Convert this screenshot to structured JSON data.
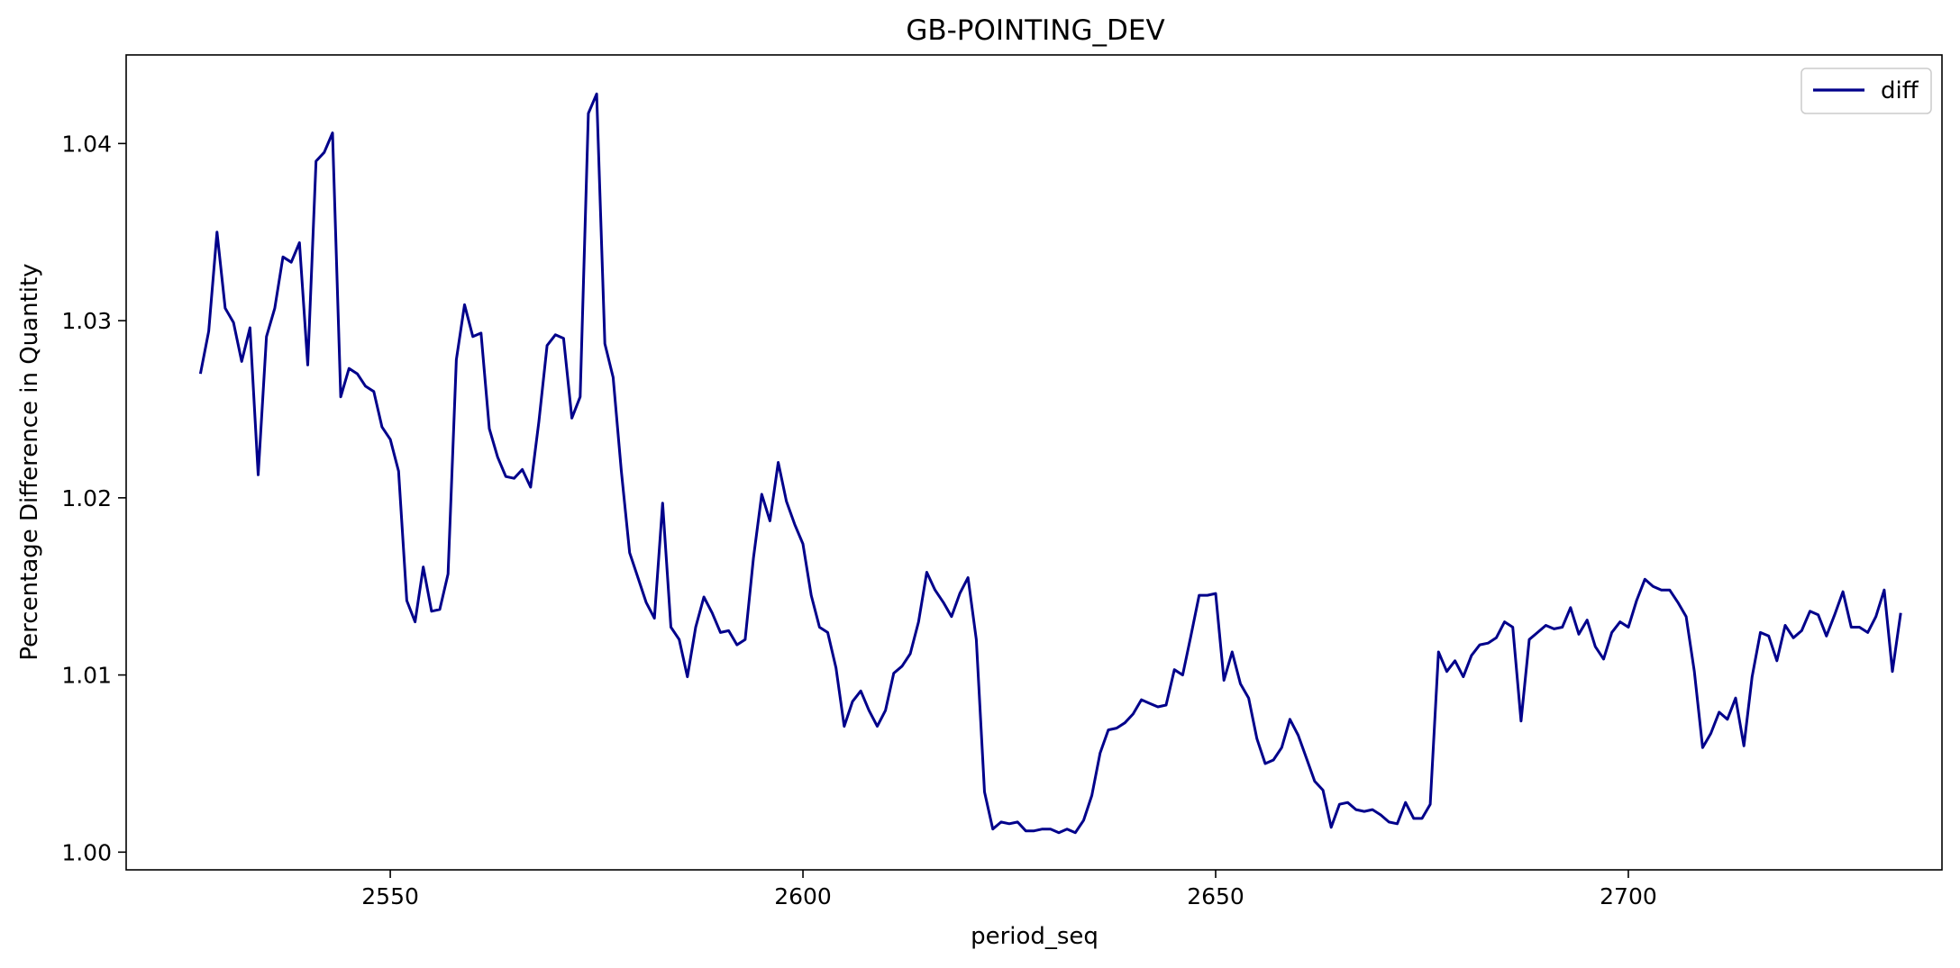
{
  "chart_data": {
    "type": "line",
    "title": "GB-POINTING_DEV",
    "xlabel": "period_seq",
    "ylabel": "Percentage Difference in Quantity",
    "xlim": [
      2518,
      2738
    ],
    "ylim": [
      0.999,
      1.045
    ],
    "xticks": [
      2550,
      2600,
      2650,
      2700
    ],
    "yticks": [
      1.0,
      1.01,
      1.02,
      1.03,
      1.04
    ],
    "xtick_labels": [
      "2550",
      "2600",
      "2650",
      "2700"
    ],
    "ytick_labels": [
      "1.00",
      "1.01",
      "1.02",
      "1.03",
      "1.04"
    ],
    "grid": false,
    "legend": {
      "position": "top-right",
      "entries": [
        "diff"
      ]
    },
    "series": [
      {
        "name": "diff",
        "color": "#00008b",
        "x": [
          2527,
          2528,
          2529,
          2530,
          2531,
          2532,
          2533,
          2534,
          2535,
          2536,
          2537,
          2538,
          2539,
          2540,
          2541,
          2542,
          2543,
          2544,
          2545,
          2546,
          2547,
          2548,
          2549,
          2550,
          2551,
          2552,
          2553,
          2554,
          2555,
          2556,
          2557,
          2558,
          2559,
          2560,
          2561,
          2562,
          2563,
          2564,
          2565,
          2566,
          2567,
          2568,
          2569,
          2570,
          2571,
          2572,
          2573,
          2574,
          2575,
          2576,
          2577,
          2578,
          2579,
          2580,
          2581,
          2582,
          2583,
          2584,
          2585,
          2586,
          2587,
          2588,
          2589,
          2590,
          2591,
          2592,
          2593,
          2594,
          2595,
          2596,
          2597,
          2598,
          2599,
          2600,
          2601,
          2602,
          2603,
          2604,
          2605,
          2606,
          2607,
          2608,
          2609,
          2610,
          2611,
          2612,
          2613,
          2614,
          2615,
          2616,
          2617,
          2618,
          2619,
          2620,
          2621,
          2622,
          2623,
          2624,
          2625,
          2626,
          2627,
          2628,
          2629,
          2630,
          2631,
          2632,
          2633,
          2634,
          2635,
          2636,
          2637,
          2638,
          2639,
          2640,
          2641,
          2642,
          2643,
          2644,
          2645,
          2646,
          2647,
          2648,
          2649,
          2650,
          2651,
          2652,
          2653,
          2654,
          2655,
          2656,
          2657,
          2658,
          2659,
          2660,
          2661,
          2662,
          2663,
          2664,
          2665,
          2666,
          2667,
          2668,
          2669,
          2670,
          2671,
          2672,
          2673,
          2674,
          2675,
          2676,
          2677,
          2678,
          2679,
          2680,
          2681,
          2682,
          2683,
          2684,
          2685,
          2686,
          2687,
          2688,
          2689,
          2690,
          2691,
          2692,
          2693,
          2694,
          2695,
          2696,
          2697,
          2698,
          2699,
          2700,
          2701,
          2702,
          2703,
          2704,
          2705,
          2706,
          2707,
          2708,
          2709,
          2710,
          2711,
          2712,
          2713,
          2714,
          2715,
          2716,
          2717,
          2718,
          2719,
          2720,
          2721,
          2722,
          2723,
          2724,
          2725,
          2726,
          2727,
          2728,
          2729,
          2730,
          2731,
          2732,
          2733
        ],
        "values": [
          1.027,
          1.0294,
          1.035,
          1.0307,
          1.0299,
          1.0277,
          1.0296,
          1.0213,
          1.0291,
          1.0307,
          1.0336,
          1.0333,
          1.0344,
          1.0275,
          1.039,
          1.0395,
          1.0406,
          1.0257,
          1.0273,
          1.027,
          1.0263,
          1.026,
          1.024,
          1.0233,
          1.0215,
          1.0142,
          1.013,
          1.0161,
          1.0136,
          1.0137,
          1.0157,
          1.0278,
          1.0309,
          1.0291,
          1.0293,
          1.0239,
          1.0223,
          1.0212,
          1.0211,
          1.0216,
          1.0206,
          1.0243,
          1.0286,
          1.0292,
          1.029,
          1.0245,
          1.0257,
          1.0417,
          1.0428,
          1.0287,
          1.0268,
          1.0215,
          1.0169,
          1.0155,
          1.0141,
          1.0132,
          1.0197,
          1.0127,
          1.012,
          1.0099,
          1.0127,
          1.0144,
          1.0135,
          1.0124,
          1.0125,
          1.0117,
          1.012,
          1.0166,
          1.0202,
          1.0187,
          1.022,
          1.0198,
          1.0185,
          1.0174,
          1.0145,
          1.0127,
          1.0124,
          1.0104,
          1.0071,
          1.0085,
          1.0091,
          1.008,
          1.0071,
          1.008,
          1.0101,
          1.0105,
          1.0112,
          1.013,
          1.0158,
          1.0148,
          1.0141,
          1.0133,
          1.0146,
          1.0155,
          1.012,
          1.0034,
          1.0013,
          1.0017,
          1.0016,
          1.0017,
          1.0012,
          1.0012,
          1.0013,
          1.0013,
          1.0011,
          1.0013,
          1.0011,
          1.0018,
          1.0032,
          1.0056,
          1.0069,
          1.007,
          1.0073,
          1.0078,
          1.0086,
          1.0084,
          1.0082,
          1.0083,
          1.0103,
          1.01,
          1.0122,
          1.0145,
          1.0145,
          1.0146,
          1.0097,
          1.0113,
          1.0095,
          1.0087,
          1.0064,
          1.005,
          1.0052,
          1.0059,
          1.0075,
          1.0066,
          1.0053,
          1.004,
          1.0035,
          1.0014,
          1.0027,
          1.0028,
          1.0024,
          1.0023,
          1.0024,
          1.0021,
          1.0017,
          1.0016,
          1.0028,
          1.0019,
          1.0019,
          1.0027,
          1.0113,
          1.0102,
          1.0108,
          1.0099,
          1.0111,
          1.0117,
          1.0118,
          1.0121,
          1.013,
          1.0127,
          1.0074,
          1.012,
          1.0124,
          1.0128,
          1.0126,
          1.0127,
          1.0138,
          1.0123,
          1.0131,
          1.0116,
          1.0109,
          1.0124,
          1.013,
          1.0127,
          1.0142,
          1.0154,
          1.015,
          1.0148,
          1.0148,
          1.0141,
          1.0133,
          1.0102,
          1.0059,
          1.0067,
          1.0079,
          1.0075,
          1.0087,
          1.006,
          1.0099,
          1.0124,
          1.0122,
          1.0108,
          1.0128,
          1.0121,
          1.0125,
          1.0136,
          1.0134,
          1.0122,
          1.0134,
          1.0147,
          1.0127,
          1.0127,
          1.0124,
          1.0133,
          1.0148,
          1.0102,
          1.0135
        ]
      }
    ]
  }
}
